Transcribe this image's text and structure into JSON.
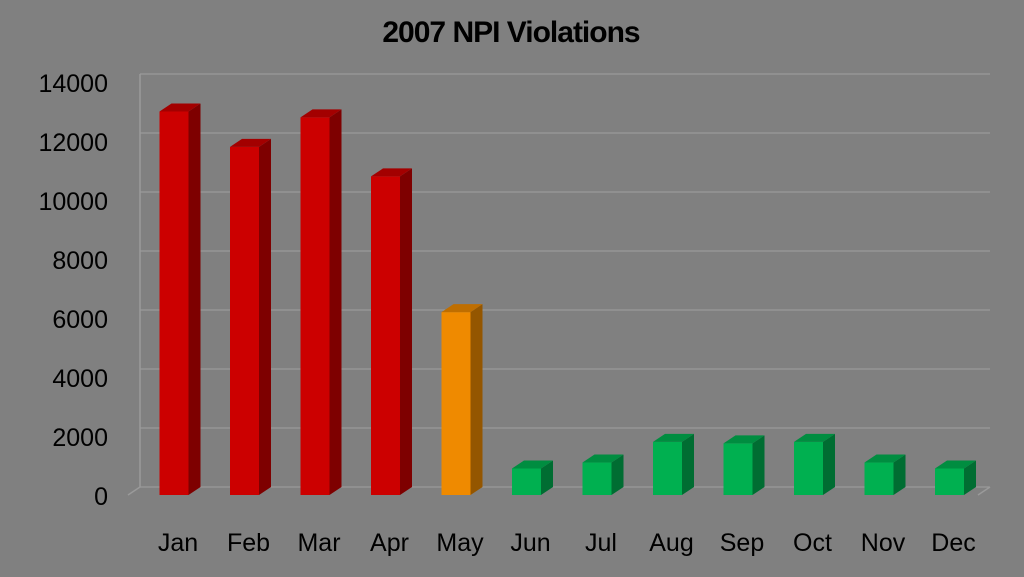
{
  "chart_data": {
    "type": "bar",
    "title": "2007 NPI Violations",
    "xlabel": "",
    "ylabel": "",
    "categories": [
      "Jan",
      "Feb",
      "Mar",
      "Apr",
      "May",
      "Jun",
      "Jul",
      "Aug",
      "Sep",
      "Oct",
      "Nov",
      "Dec"
    ],
    "values": [
      13000,
      11800,
      12800,
      10800,
      6200,
      900,
      1100,
      1800,
      1750,
      1800,
      1100,
      900
    ],
    "bar_colors": [
      "#cc0000",
      "#cc0000",
      "#cc0000",
      "#cc0000",
      "#ef8a00",
      "#00b050",
      "#00b050",
      "#00b050",
      "#00b050",
      "#00b050",
      "#00b050",
      "#00b050"
    ],
    "ylim": [
      0,
      14000
    ],
    "yticks": [
      "0",
      "2000",
      "4000",
      "6000",
      "8000",
      "10000",
      "12000",
      "14000"
    ],
    "grid": true,
    "legend": "none",
    "style": "3d-column"
  }
}
